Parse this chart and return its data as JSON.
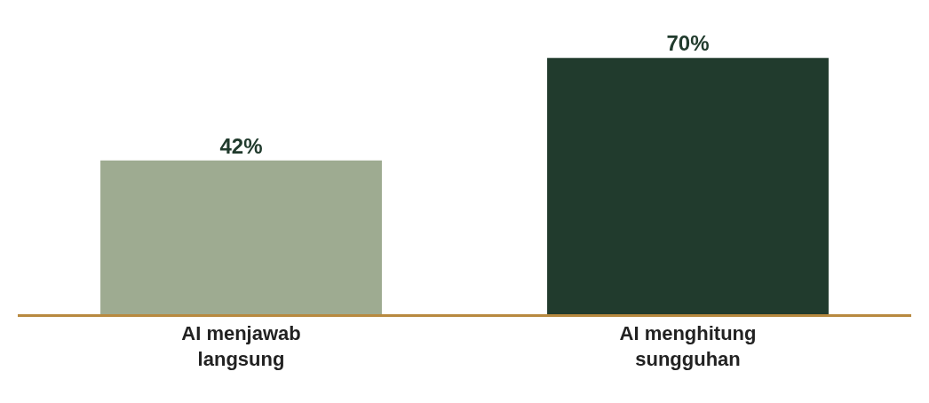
{
  "chart_data": {
    "type": "bar",
    "categories": [
      "AI menjawab\nlangsung",
      "AI menghitung\nsungguhan"
    ],
    "values": [
      42,
      70
    ],
    "colors": [
      "#9eab91",
      "#213b2d"
    ],
    "value_labels": [
      "42%",
      "70%"
    ],
    "tick_labels": "x"
  }
}
